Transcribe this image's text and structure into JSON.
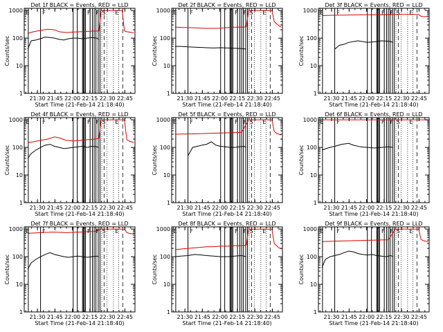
{
  "figure": {
    "ylabel": "Counts/sec",
    "xlabel": "Start Time (21-Feb-14 21:18:40)",
    "xticks": [
      "21:30",
      "21:45",
      "22:00",
      "22:15",
      "22:30",
      "22:45"
    ],
    "yticks": [
      "1",
      "10",
      "100",
      "1000"
    ],
    "colors": {
      "black_series": "#000000",
      "red_series": "#dd0000",
      "frame": "#000000"
    }
  },
  "chart_data": [
    {
      "type": "line",
      "title": "Det 1f BLACK = Events, RED = LLD",
      "x_units": "minutes since 21:18:40",
      "xlim": [
        0,
        95
      ],
      "ylim": [
        1,
        1200
      ],
      "yscale": "log",
      "series": [
        {
          "color": "black",
          "x": [
            3,
            6,
            10,
            14,
            18,
            22,
            26,
            30,
            34,
            38,
            42,
            46,
            50,
            54,
            58,
            62,
            64
          ],
          "values": [
            40,
            80,
            85,
            95,
            110,
            105,
            100,
            90,
            85,
            95,
            100,
            100,
            95,
            100,
            105,
            100,
            90
          ]
        },
        {
          "color": "red",
          "x": [
            3,
            8,
            14,
            20,
            26,
            30,
            36,
            42,
            48,
            54,
            60,
            64,
            66,
            68,
            70,
            72,
            74,
            76,
            78,
            80,
            82,
            84,
            86,
            88,
            90,
            92,
            94
          ],
          "values": [
            150,
            170,
            190,
            210,
            200,
            170,
            160,
            165,
            170,
            175,
            180,
            180,
            1000,
            1000,
            1000,
            1000,
            1000,
            1000,
            1000,
            1000,
            1000,
            1000,
            180,
            170,
            165,
            160,
            155
          ]
        }
      ],
      "annotations": [
        "E",
        "F",
        "F",
        "F",
        "S",
        "E"
      ]
    },
    {
      "type": "line",
      "title": "Det 2f BLACK = Events, RED = LLD",
      "x_units": "minutes since 21:18:40",
      "xlim": [
        0,
        95
      ],
      "ylim": [
        1,
        1200
      ],
      "yscale": "log",
      "series": [
        {
          "color": "black",
          "x": [
            3,
            8,
            14,
            20,
            26,
            30,
            36,
            42,
            48,
            54,
            60,
            64
          ],
          "values": [
            50,
            50,
            48,
            47,
            46,
            45,
            44,
            45,
            44,
            43,
            42,
            40
          ]
        },
        {
          "color": "red",
          "x": [
            3,
            8,
            14,
            20,
            26,
            30,
            36,
            42,
            48,
            54,
            60,
            64,
            66,
            70,
            74,
            78,
            82,
            86,
            88,
            90,
            92,
            94
          ],
          "values": [
            250,
            245,
            240,
            235,
            230,
            225,
            225,
            230,
            240,
            250,
            250,
            255,
            1000,
            1000,
            1000,
            1000,
            1000,
            1000,
            400,
            330,
            280,
            250
          ]
        }
      ],
      "annotations": [
        "E",
        "F",
        "F",
        "F",
        "S",
        "E"
      ]
    },
    {
      "type": "line",
      "title": "Det 3f BLACK = Events, RED = LLD",
      "x_units": "minutes since 21:18:40",
      "xlim": [
        0,
        95
      ],
      "ylim": [
        1,
        1200
      ],
      "yscale": "log",
      "series": [
        {
          "color": "black",
          "x": [
            14,
            18,
            22,
            26,
            30,
            34,
            38,
            42,
            46,
            50,
            54,
            58,
            62,
            64
          ],
          "values": [
            40,
            55,
            60,
            70,
            75,
            80,
            75,
            70,
            72,
            75,
            80,
            78,
            75,
            70
          ]
        },
        {
          "color": "red",
          "x": [
            3,
            10,
            20,
            30,
            40,
            50,
            60,
            70,
            80,
            86,
            88,
            90,
            92,
            94
          ],
          "values": [
            650,
            670,
            680,
            690,
            700,
            700,
            710,
            720,
            720,
            720,
            620,
            600,
            600,
            620
          ]
        }
      ],
      "annotations": [
        "E",
        "F",
        "F",
        "F",
        "S",
        "E"
      ]
    },
    {
      "type": "line",
      "title": "Det 4f BLACK = Events, RED = LLD",
      "x_units": "minutes since 21:18:40",
      "xlim": [
        0,
        95
      ],
      "ylim": [
        1,
        1200
      ],
      "yscale": "log",
      "series": [
        {
          "color": "black",
          "x": [
            3,
            6,
            10,
            14,
            18,
            22,
            26,
            30,
            34,
            38,
            42,
            46,
            50,
            54,
            58,
            62,
            64
          ],
          "values": [
            40,
            60,
            80,
            100,
            120,
            130,
            110,
            100,
            90,
            95,
            100,
            105,
            110,
            100,
            110,
            105,
            100
          ]
        },
        {
          "color": "red",
          "x": [
            3,
            8,
            14,
            20,
            26,
            30,
            36,
            42,
            48,
            54,
            60,
            64,
            66,
            70,
            74,
            78,
            82,
            86,
            88,
            90,
            92,
            94
          ],
          "values": [
            150,
            160,
            180,
            200,
            240,
            220,
            180,
            170,
            180,
            190,
            200,
            210,
            1000,
            1000,
            1000,
            1000,
            1000,
            1000,
            190,
            170,
            160,
            150
          ]
        }
      ],
      "annotations": [
        "E",
        "F",
        "F",
        "F",
        "S",
        "E"
      ]
    },
    {
      "type": "line",
      "title": "Det 5f BLACK = Events, RED = LLD",
      "x_units": "minutes since 21:18:40",
      "xlim": [
        0,
        95
      ],
      "ylim": [
        1,
        1200
      ],
      "yscale": "log",
      "series": [
        {
          "color": "black",
          "x": [
            14,
            18,
            22,
            26,
            30,
            34,
            38,
            42,
            46,
            50,
            54,
            58,
            62,
            64
          ],
          "values": [
            50,
            100,
            110,
            120,
            130,
            160,
            120,
            110,
            105,
            100,
            100,
            105,
            110,
            100
          ]
        },
        {
          "color": "red",
          "x": [
            3,
            10,
            20,
            30,
            40,
            50,
            60,
            66,
            70,
            74,
            78,
            82,
            86,
            88,
            90,
            92,
            94
          ],
          "values": [
            300,
            305,
            310,
            320,
            330,
            340,
            350,
            1000,
            1000,
            1000,
            1000,
            1000,
            1000,
            380,
            320,
            300,
            280
          ]
        }
      ],
      "annotations": [
        "E",
        "F",
        "F",
        "F",
        "S",
        "E"
      ]
    },
    {
      "type": "line",
      "title": "Det 6f BLACK = Events, RED = LLD",
      "x_units": "minutes since 21:18:40",
      "xlim": [
        0,
        95
      ],
      "ylim": [
        1,
        1200
      ],
      "yscale": "log",
      "series": [
        {
          "color": "black",
          "x": [
            3,
            8,
            14,
            20,
            26,
            30,
            36,
            42,
            48,
            54,
            60,
            64
          ],
          "values": [
            80,
            95,
            110,
            130,
            140,
            120,
            105,
            100,
            95,
            100,
            105,
            100
          ]
        },
        {
          "color": "red",
          "x": [
            3,
            10,
            20,
            30,
            40,
            50,
            60,
            70,
            80,
            86,
            88,
            90,
            92,
            94
          ],
          "values": [
            1000,
            1000,
            1000,
            1000,
            1000,
            1000,
            1000,
            1000,
            1000,
            1000,
            1000,
            1000,
            1000,
            1000
          ]
        }
      ],
      "annotations": [
        "E",
        "F",
        "F",
        "F",
        "S",
        "E"
      ]
    },
    {
      "type": "line",
      "title": "Det 7f BLACK = Events, RED = LLD",
      "x_units": "minutes since 21:18:40",
      "xlim": [
        0,
        95
      ],
      "ylim": [
        1,
        1200
      ],
      "yscale": "log",
      "series": [
        {
          "color": "black",
          "x": [
            3,
            6,
            10,
            14,
            18,
            22,
            26,
            30,
            34,
            38,
            42,
            46,
            50,
            54,
            58,
            62,
            64
          ],
          "values": [
            35,
            60,
            80,
            100,
            120,
            140,
            120,
            110,
            100,
            95,
            100,
            105,
            100,
            95,
            100,
            105,
            100
          ]
        },
        {
          "color": "red",
          "x": [
            3,
            8,
            14,
            20,
            26,
            30,
            36,
            42,
            48,
            54,
            60,
            66,
            70,
            74,
            78,
            82,
            86,
            88,
            90,
            92,
            94
          ],
          "values": [
            700,
            720,
            740,
            760,
            780,
            760,
            740,
            760,
            780,
            800,
            820,
            1000,
            1000,
            1000,
            1000,
            1000,
            1000,
            750,
            700,
            680,
            670
          ]
        }
      ],
      "annotations": [
        "E",
        "F",
        "F",
        "F",
        "S",
        "E"
      ]
    },
    {
      "type": "line",
      "title": "Det 8f BLACK = Events, RED = LLD",
      "x_units": "minutes since 21:18:40",
      "xlim": [
        0,
        95
      ],
      "ylim": [
        1,
        1200
      ],
      "yscale": "log",
      "series": [
        {
          "color": "black",
          "x": [
            3,
            8,
            14,
            20,
            26,
            30,
            36,
            42,
            48,
            54,
            60,
            64
          ],
          "values": [
            100,
            105,
            110,
            120,
            115,
            110,
            105,
            100,
            100,
            105,
            110,
            100
          ]
        },
        {
          "color": "red",
          "x": [
            3,
            8,
            14,
            20,
            26,
            30,
            36,
            42,
            48,
            54,
            60,
            64,
            66,
            70,
            74,
            78,
            82,
            86,
            88,
            90,
            92,
            94
          ],
          "values": [
            180,
            190,
            200,
            210,
            220,
            230,
            230,
            240,
            240,
            250,
            250,
            260,
            1000,
            1000,
            1000,
            1000,
            1000,
            1000,
            300,
            250,
            210,
            190
          ]
        }
      ],
      "annotations": [
        "E",
        "F",
        "F",
        "F",
        "S",
        "E"
      ]
    },
    {
      "type": "line",
      "title": "Det 9f BLACK = Events, RED = LLD",
      "x_units": "minutes since 21:18:40",
      "xlim": [
        0,
        95
      ],
      "ylim": [
        1,
        1200
      ],
      "yscale": "log",
      "series": [
        {
          "color": "black",
          "x": [
            3,
            6,
            10,
            14,
            18,
            22,
            26,
            30,
            34,
            38,
            42,
            46,
            50,
            54,
            58,
            62,
            64
          ],
          "values": [
            40,
            80,
            100,
            110,
            120,
            140,
            160,
            150,
            130,
            120,
            115,
            120,
            110,
            105,
            100,
            110,
            100
          ]
        },
        {
          "color": "red",
          "x": [
            3,
            10,
            20,
            30,
            40,
            50,
            60,
            66,
            70,
            74,
            78,
            82,
            86,
            88,
            90,
            92,
            94
          ],
          "values": [
            350,
            360,
            370,
            380,
            390,
            400,
            410,
            1000,
            1000,
            1000,
            1000,
            1000,
            1000,
            420,
            380,
            360,
            350
          ]
        }
      ],
      "annotations": [
        "E",
        "F",
        "F",
        "F",
        "S",
        "E"
      ]
    }
  ]
}
